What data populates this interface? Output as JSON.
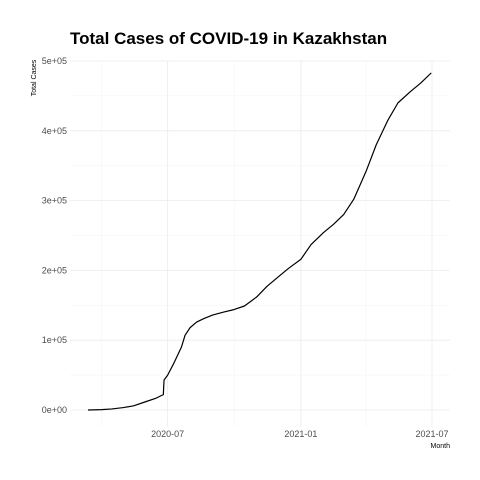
{
  "chart_data": {
    "type": "line",
    "title": "Total Cases of COVID-19 in Kazakhstan",
    "xlabel": "Month",
    "ylabel": "Total Cases",
    "xlim": [
      "2020-03-13",
      "2021-07-01"
    ],
    "ylim": [
      0,
      500000
    ],
    "grid": true,
    "x_ticks": [
      {
        "value": "2020-07-01",
        "label": "2020-07"
      },
      {
        "value": "2021-01-01",
        "label": "2021-01"
      },
      {
        "value": "2021-07-01",
        "label": "2021-07"
      }
    ],
    "x_minor_ticks": [
      "2020-04-01",
      "2020-10-01",
      "2021-04-01"
    ],
    "y_ticks": [
      {
        "value": 0,
        "label": "0e+00"
      },
      {
        "value": 100000,
        "label": "1e+05"
      },
      {
        "value": 200000,
        "label": "2e+05"
      },
      {
        "value": 300000,
        "label": "3e+05"
      },
      {
        "value": 400000,
        "label": "4e+05"
      },
      {
        "value": 500000,
        "label": "5e+05"
      }
    ],
    "y_minor_ticks": [
      50000,
      150000,
      250000,
      350000,
      450000
    ],
    "series": [
      {
        "color": "#000000",
        "points": [
          [
            "2020-03-13",
            0
          ],
          [
            "2020-04-01",
            500
          ],
          [
            "2020-04-15",
            1500
          ],
          [
            "2020-05-01",
            3500
          ],
          [
            "2020-05-15",
            6000
          ],
          [
            "2020-06-01",
            12000
          ],
          [
            "2020-06-15",
            17000
          ],
          [
            "2020-06-25",
            22000
          ],
          [
            "2020-06-26",
            43000
          ],
          [
            "2020-07-01",
            50000
          ],
          [
            "2020-07-10",
            68000
          ],
          [
            "2020-07-20",
            90000
          ],
          [
            "2020-07-25",
            107000
          ],
          [
            "2020-08-01",
            118000
          ],
          [
            "2020-08-10",
            126000
          ],
          [
            "2020-08-20",
            131000
          ],
          [
            "2020-09-01",
            136000
          ],
          [
            "2020-09-15",
            140000
          ],
          [
            "2020-10-01",
            144000
          ],
          [
            "2020-10-15",
            149000
          ],
          [
            "2020-11-01",
            162000
          ],
          [
            "2020-11-15",
            177000
          ],
          [
            "2020-12-01",
            191000
          ],
          [
            "2020-12-15",
            203000
          ],
          [
            "2021-01-01",
            216000
          ],
          [
            "2021-01-15",
            237000
          ],
          [
            "2021-02-01",
            254000
          ],
          [
            "2021-02-15",
            266000
          ],
          [
            "2021-03-01",
            280000
          ],
          [
            "2021-03-15",
            302000
          ],
          [
            "2021-04-01",
            342000
          ],
          [
            "2021-04-15",
            380000
          ],
          [
            "2021-05-01",
            415000
          ],
          [
            "2021-05-15",
            440000
          ],
          [
            "2021-06-01",
            456000
          ],
          [
            "2021-06-15",
            468000
          ],
          [
            "2021-06-30",
            483000
          ]
        ]
      }
    ]
  }
}
